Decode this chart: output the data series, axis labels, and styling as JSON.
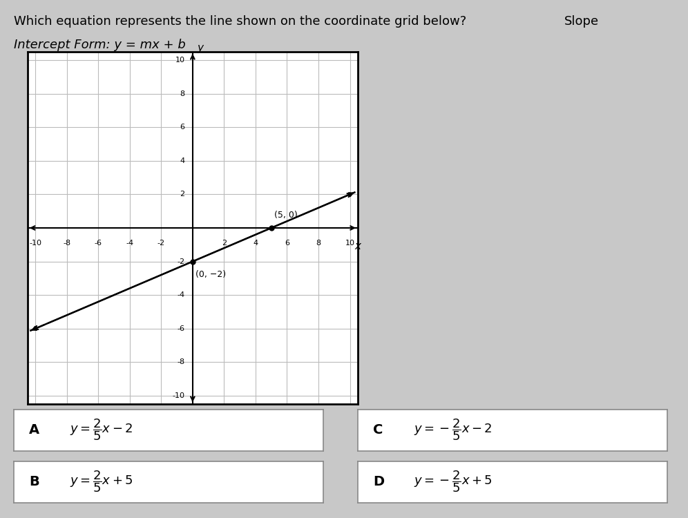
{
  "title_line1": "Which equation represents the line shown on the coordinate grid below?",
  "title_line2": "Slope",
  "title_line3": "Intercept Form: y = mx + b",
  "slope": 0.4,
  "intercept": -2,
  "point1": [
    0,
    -2
  ],
  "point2": [
    5,
    0
  ],
  "point1_label": "(0, −2)",
  "point2_label": "(5, 0)",
  "grid_xlim": [
    -10,
    10
  ],
  "grid_ylim": [
    -10,
    10
  ],
  "xticks": [
    -10,
    -8,
    -6,
    -4,
    -2,
    2,
    4,
    6,
    8,
    10
  ],
  "yticks": [
    -10,
    -8,
    -6,
    -4,
    -2,
    2,
    4,
    6,
    8,
    10
  ],
  "line_color": "#000000",
  "grid_color": "#aaaaaa",
  "bg_color": "#d3d3d3",
  "answer_bg": "#ffffff",
  "answer_A": "y = ²₅x − 2",
  "answer_B": "y = ²₅x + 5",
  "answer_C": "y = −²₅x − 2",
  "answer_D": "y = −²₅x + 5",
  "answer_A_latex": "$y = \\dfrac{2}{5}x - 2$",
  "answer_B_latex": "$y = \\dfrac{2}{5}x + 5$",
  "answer_C_latex": "$y = -\\dfrac{2}{5}x - 2$",
  "answer_D_latex": "$y = -\\dfrac{2}{5}x + 5$"
}
